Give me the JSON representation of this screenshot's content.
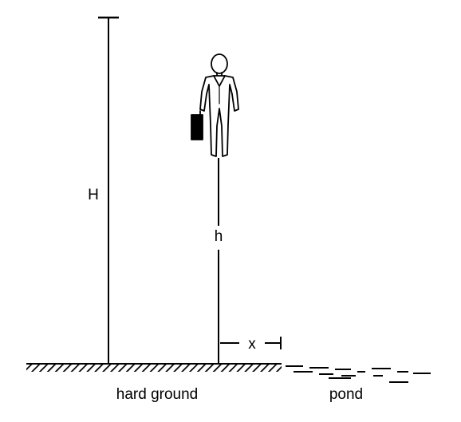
{
  "labels": {
    "tall_height": "H",
    "person_height": "h",
    "gap": "x",
    "ground": "hard ground",
    "water": "pond"
  },
  "icons": {
    "person": "person-with-briefcase-icon"
  },
  "colors": {
    "ink": "#000000",
    "background": "#ffffff"
  }
}
